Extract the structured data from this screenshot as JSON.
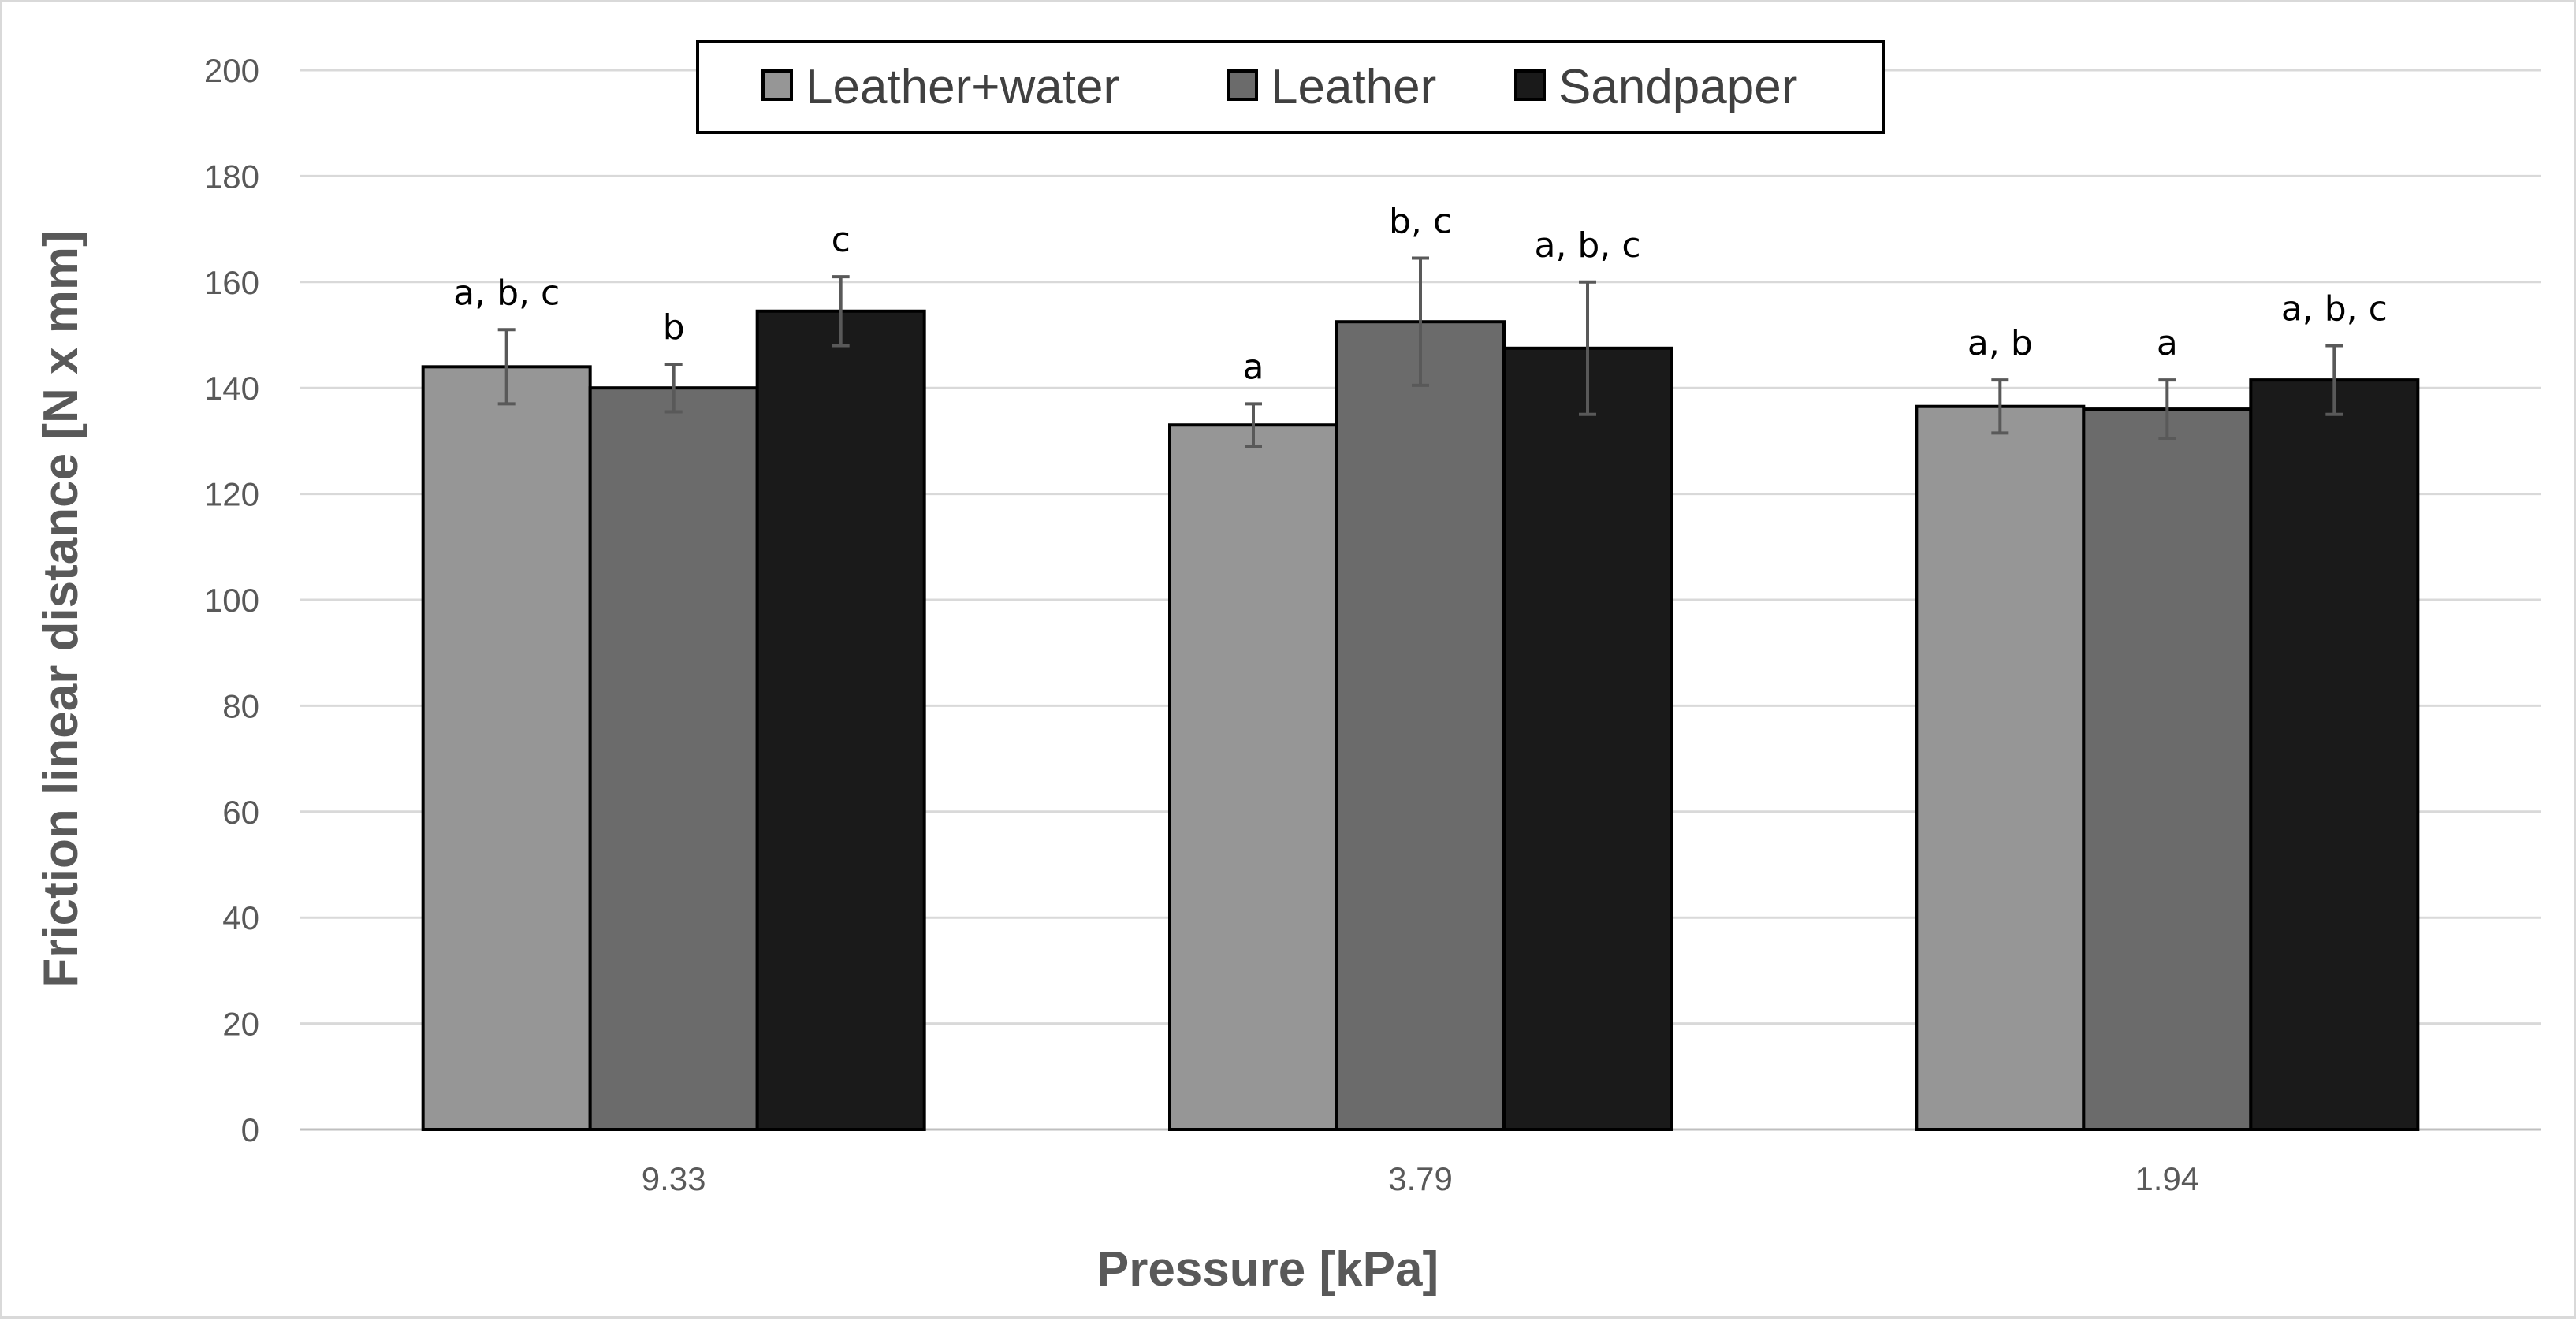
{
  "chart_data": {
    "type": "bar",
    "title": "",
    "xlabel": "Pressure [kPa]",
    "ylabel": "Friction linear distance [N x mm]",
    "ylim": [
      0,
      200
    ],
    "yticks": [
      0,
      20,
      40,
      60,
      80,
      100,
      120,
      140,
      160,
      180,
      200
    ],
    "grid": true,
    "legend_position": "top-center",
    "categories": [
      "9.33",
      "3.79",
      "1.94"
    ],
    "series": [
      {
        "name": "Leather+water",
        "color": "#969696",
        "values": [
          144,
          133,
          136.5
        ],
        "errors": [
          7,
          4,
          5
        ],
        "labels": [
          "a, b, c",
          "a",
          "a, b"
        ]
      },
      {
        "name": "Leather",
        "color": "#6b6b6b",
        "values": [
          140,
          152.5,
          136
        ],
        "errors": [
          4.5,
          12,
          5.5
        ],
        "labels": [
          "b",
          "b, c",
          "a"
        ]
      },
      {
        "name": "Sandpaper",
        "color": "#1a1a1a",
        "values": [
          154.5,
          147.5,
          141.5
        ],
        "errors": [
          6.5,
          12.5,
          6.5
        ],
        "labels": [
          "c",
          "a, b, c",
          "a, b, c"
        ]
      }
    ]
  },
  "colors": {
    "gridline": "#d9d9d9",
    "axis": "#bfbfbf",
    "error_bar": "#595959",
    "bar_outline": "#000000"
  }
}
